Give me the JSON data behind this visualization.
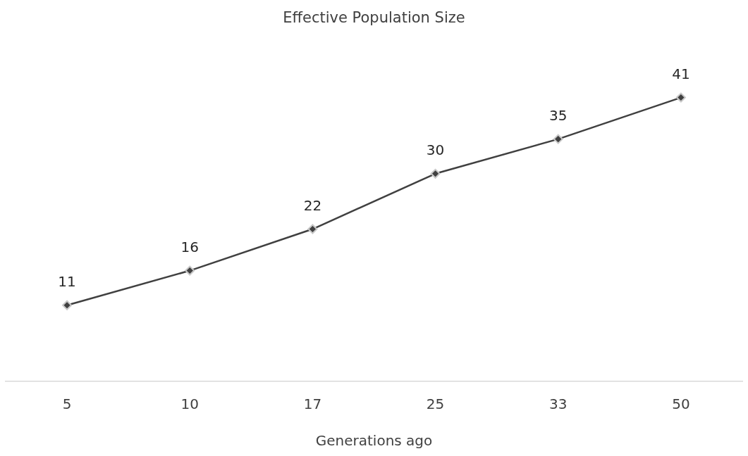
{
  "chart_data": {
    "type": "line",
    "title": "Effective Population Size",
    "xlabel": "Generations ago",
    "categories": [
      "5",
      "10",
      "17",
      "25",
      "33",
      "50"
    ],
    "values": [
      11,
      16,
      22,
      30,
      35,
      41
    ],
    "color": "#404040",
    "data_labels": true,
    "marker": "diamond",
    "line_style": "solid",
    "grid": false,
    "legend": false,
    "tick_labels": "x"
  }
}
